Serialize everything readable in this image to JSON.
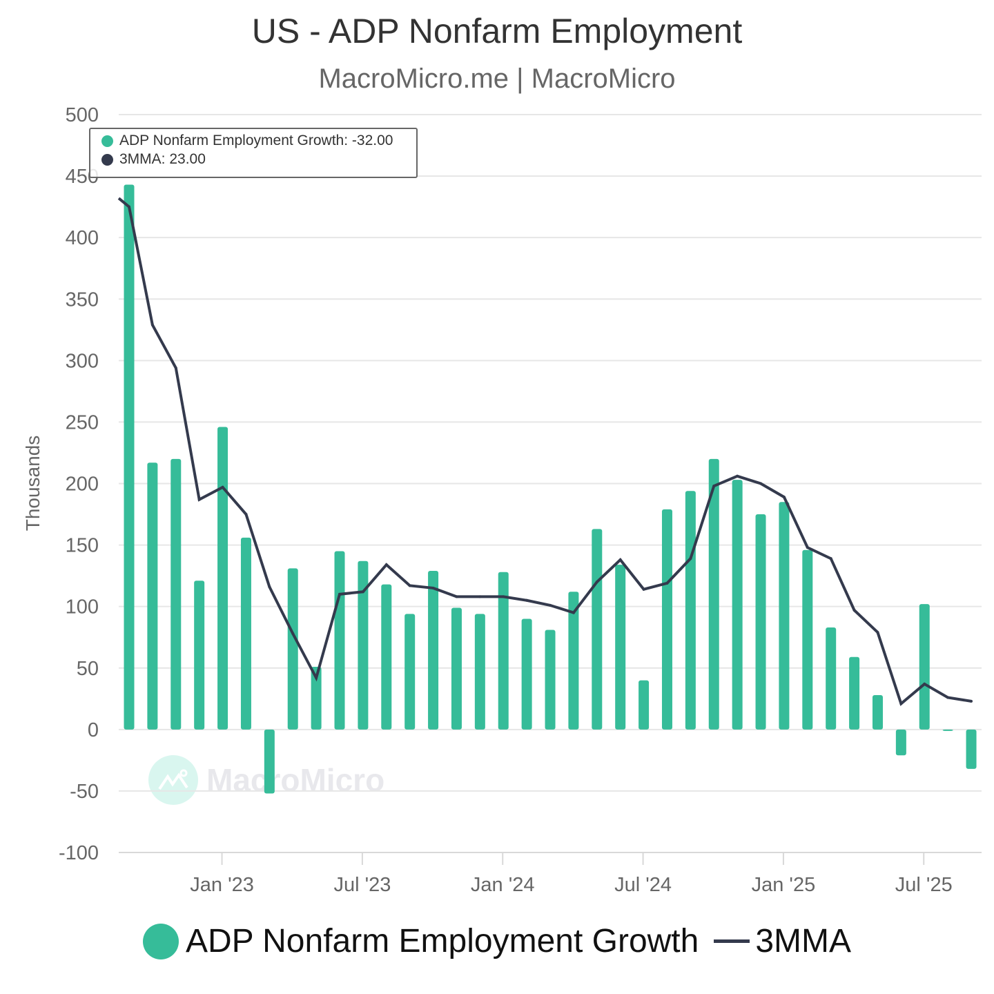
{
  "header": {
    "title": "US - ADP Nonfarm Employment",
    "subtitle": "MacroMicro.me | MacroMicro"
  },
  "tooltip": {
    "series1_text": "ADP Nonfarm Employment Growth: -32.00",
    "series2_text": "3MMA: 23.00"
  },
  "watermark": {
    "text": "MacroMicro"
  },
  "legend": {
    "items": [
      {
        "label": "ADP Nonfarm Employment Growth",
        "color": "#36bc99"
      },
      {
        "label": "3MMA",
        "color": "#343a4d"
      }
    ]
  },
  "chart_data": {
    "type": "bar",
    "title": "US - ADP Nonfarm Employment",
    "subtitle": "MacroMicro.me | MacroMicro",
    "xlabel": "",
    "ylabel": "Thousands",
    "ylim": [
      -100,
      500
    ],
    "yticks": [
      500,
      450,
      400,
      350,
      300,
      250,
      200,
      150,
      100,
      50,
      0,
      -50,
      -100
    ],
    "xtick_labels": [
      {
        "label": "Jan '23",
        "index": 4
      },
      {
        "label": "Jul '23",
        "index": 10
      },
      {
        "label": "Jan '24",
        "index": 16
      },
      {
        "label": "Jul '24",
        "index": 22
      },
      {
        "label": "Jan '25",
        "index": 28
      },
      {
        "label": "Jul '25",
        "index": 34
      }
    ],
    "grid": true,
    "legend_position": "bottom",
    "categories": [
      "2022-09",
      "2022-10",
      "2022-11",
      "2022-12",
      "2023-01",
      "2023-02",
      "2023-03",
      "2023-04",
      "2023-05",
      "2023-06",
      "2023-07",
      "2023-08",
      "2023-09",
      "2023-10",
      "2023-11",
      "2023-12",
      "2024-01",
      "2024-02",
      "2024-03",
      "2024-04",
      "2024-05",
      "2024-06",
      "2024-07",
      "2024-08",
      "2024-09",
      "2024-10",
      "2024-11",
      "2024-12",
      "2025-01",
      "2025-02",
      "2025-03",
      "2025-04",
      "2025-05",
      "2025-06",
      "2025-07",
      "2025-08",
      "2025-09"
    ],
    "series": [
      {
        "name": "ADP Nonfarm Employment Growth",
        "type": "bar",
        "color": "#36bc99",
        "values": [
          443,
          217,
          220,
          121,
          246,
          156,
          -52,
          131,
          51,
          145,
          137,
          118,
          94,
          129,
          99,
          94,
          128,
          90,
          81,
          112,
          163,
          134,
          40,
          179,
          194,
          220,
          203,
          175,
          185,
          146,
          83,
          59,
          28,
          -21,
          102,
          -1,
          -32
        ]
      },
      {
        "name": "3MMA",
        "type": "line",
        "color": "#343a4d",
        "start_value": 432,
        "values": [
          425,
          329,
          294,
          187,
          197,
          175,
          116,
          78,
          42,
          110,
          112,
          134,
          117,
          115,
          108,
          108,
          108,
          105,
          101,
          95,
          120,
          138,
          114,
          119,
          139,
          198,
          206,
          200,
          189,
          148,
          139,
          97,
          79,
          21,
          37,
          26,
          23
        ]
      }
    ]
  }
}
